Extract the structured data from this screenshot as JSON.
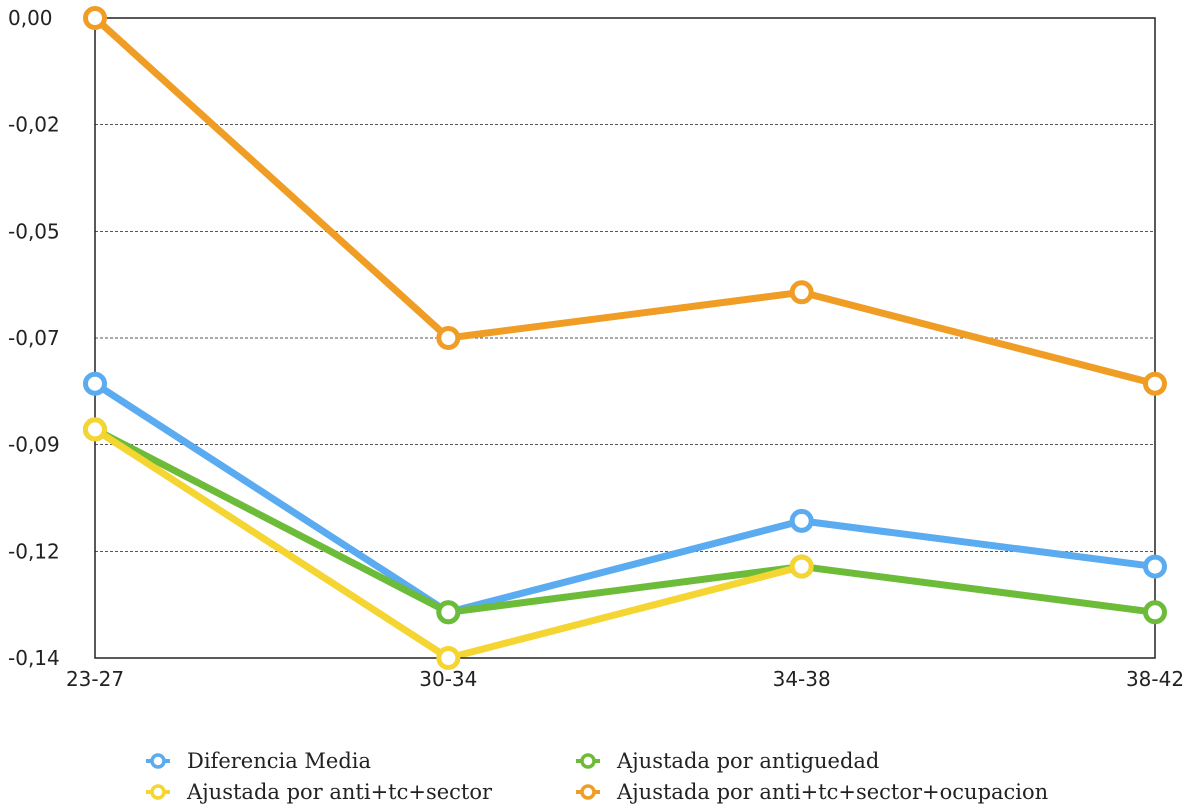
{
  "chart_data": {
    "type": "line",
    "title": "",
    "xlabel": "",
    "ylabel": "",
    "categories": [
      "23-27",
      "30-34",
      "34-38",
      "38-42"
    ],
    "y_ticks": [
      "0,00",
      "-0,02",
      "-0,05",
      "-0,07",
      "-0,09",
      "-0,12",
      "-0,14"
    ],
    "y_tick_values": [
      0,
      -0.0233,
      -0.0467,
      -0.07,
      -0.0933,
      -0.1167,
      -0.14
    ],
    "ylim": [
      -0.14,
      0
    ],
    "grid": "horizontal dashed",
    "legend_position": "bottom",
    "series": [
      {
        "name": "Diferencia Media",
        "color": "#5aabf0",
        "values": [
          -0.08,
          -0.13,
          -0.11,
          -0.12
        ]
      },
      {
        "name": "Ajustada por antiguedad",
        "color": "#6cbc3a",
        "values": [
          -0.09,
          -0.13,
          -0.12,
          -0.13
        ]
      },
      {
        "name": "Ajustada por anti+tc+sector",
        "color": "#f5d531",
        "values": [
          -0.09,
          -0.14,
          -0.12,
          null
        ]
      },
      {
        "name": "Ajustada por anti+tc+sector+ocupacion",
        "color": "#ef9d25",
        "values": [
          0.0,
          -0.07,
          -0.06,
          -0.08
        ]
      }
    ]
  }
}
